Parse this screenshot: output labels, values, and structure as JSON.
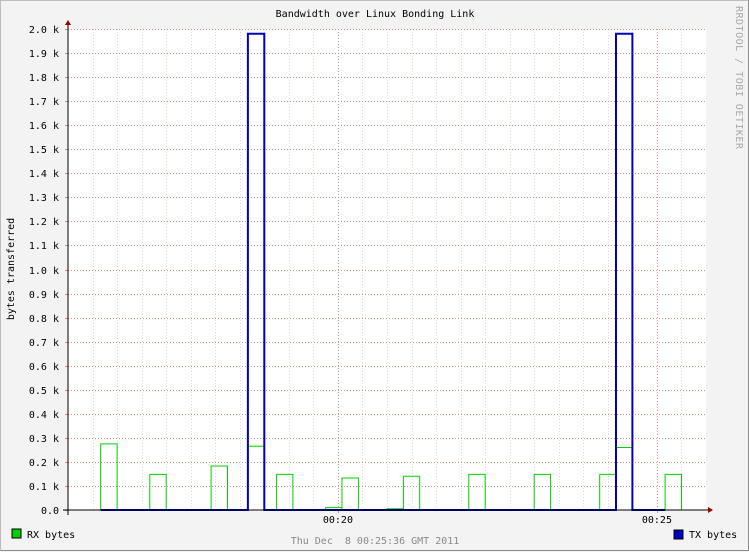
{
  "chart_data": {
    "type": "line",
    "title": "Bandwidth over Linux Bonding Link",
    "ylabel": "bytes transferred",
    "xlabel": "",
    "ylim": [
      0,
      2000
    ],
    "y_ticks": [
      0,
      100,
      200,
      300,
      400,
      500,
      600,
      700,
      800,
      900,
      1000,
      1100,
      1200,
      1300,
      1400,
      1500,
      1600,
      1700,
      1800,
      1900,
      2000
    ],
    "y_tick_labels": [
      "0.0",
      "0.1 k",
      "0.2 k",
      "0.3 k",
      "0.4 k",
      "0.5 k",
      "0.6 k",
      "0.7 k",
      "0.8 k",
      "0.9 k",
      "1.0 k",
      "1.1 k",
      "1.2 k",
      "1.3 k",
      "1.4 k",
      "1.5 k",
      "1.6 k",
      "1.7 k",
      "1.8 k",
      "1.9 k",
      "2.0 k"
    ],
    "xlim_seconds": [
      0,
      780
    ],
    "x_ticks": [
      {
        "t": 330,
        "label": "00:20"
      },
      {
        "t": 720,
        "label": "00:25"
      }
    ],
    "series": [
      {
        "name": "RX bytes",
        "color": "#00d000",
        "style": "step",
        "points": [
          [
            40,
            0
          ],
          [
            40,
            275
          ],
          [
            60,
            275
          ],
          [
            60,
            0
          ],
          [
            100,
            0
          ],
          [
            100,
            148
          ],
          [
            120,
            148
          ],
          [
            120,
            0
          ],
          [
            175,
            0
          ],
          [
            175,
            183
          ],
          [
            195,
            183
          ],
          [
            195,
            0
          ],
          [
            220,
            0
          ],
          [
            220,
            265
          ],
          [
            240,
            265
          ],
          [
            240,
            0
          ],
          [
            255,
            0
          ],
          [
            255,
            148
          ],
          [
            275,
            148
          ],
          [
            275,
            0
          ],
          [
            315,
            0
          ],
          [
            315,
            10
          ],
          [
            335,
            10
          ],
          [
            335,
            0
          ],
          [
            335,
            0
          ],
          [
            335,
            133
          ],
          [
            355,
            133
          ],
          [
            355,
            0
          ],
          [
            390,
            0
          ],
          [
            390,
            5
          ],
          [
            410,
            5
          ],
          [
            410,
            0
          ],
          [
            410,
            0
          ],
          [
            410,
            140
          ],
          [
            430,
            140
          ],
          [
            430,
            0
          ],
          [
            490,
            0
          ],
          [
            490,
            148
          ],
          [
            510,
            148
          ],
          [
            510,
            0
          ],
          [
            570,
            0
          ],
          [
            570,
            148
          ],
          [
            590,
            148
          ],
          [
            590,
            0
          ],
          [
            650,
            0
          ],
          [
            650,
            148
          ],
          [
            670,
            148
          ],
          [
            670,
            0
          ],
          [
            670,
            0
          ],
          [
            670,
            260
          ],
          [
            690,
            260
          ],
          [
            690,
            0
          ],
          [
            730,
            0
          ],
          [
            730,
            148
          ],
          [
            750,
            148
          ],
          [
            750,
            0
          ]
        ]
      },
      {
        "name": "TX bytes",
        "color": "#0000c0",
        "style": "step",
        "points": [
          [
            40,
            0
          ],
          [
            220,
            0
          ],
          [
            220,
            1980
          ],
          [
            240,
            1980
          ],
          [
            240,
            0
          ],
          [
            670,
            0
          ],
          [
            670,
            1980
          ],
          [
            690,
            1980
          ],
          [
            690,
            0
          ],
          [
            730,
            0
          ]
        ]
      }
    ],
    "legend": [
      {
        "label": "RX bytes",
        "color": "#00d000",
        "position": "bottom-left"
      },
      {
        "label": "TX bytes",
        "color": "#0000c0",
        "position": "bottom-right"
      }
    ],
    "watermark": "RRDTOOL / TOBI OETIKER",
    "footer": "Thu Dec  8 00:25:36 GMT 2011"
  }
}
